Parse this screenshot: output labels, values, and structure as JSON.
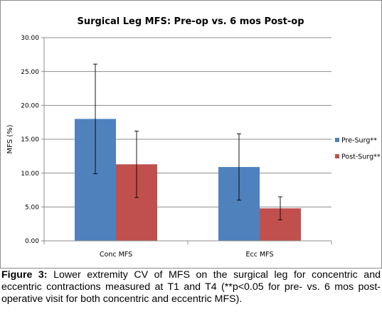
{
  "chart_data": {
    "type": "bar",
    "title": "Surgical Leg MFS: Pre-op vs. 6 mos Post-op",
    "ylabel": "MFS (%)",
    "xlabel": "",
    "ylim": [
      0,
      30
    ],
    "yticks": [
      "0.00",
      "5.00",
      "10.00",
      "15.00",
      "20.00",
      "25.00",
      "30.00"
    ],
    "categories": [
      "Conc MFS",
      "Ecc MFS"
    ],
    "series": [
      {
        "name": "Pre-Surg**",
        "color": "#4f81bd",
        "values": [
          18.0,
          10.9
        ],
        "error": [
          8.1,
          4.9
        ]
      },
      {
        "name": "Post-Surg**",
        "color": "#c0504d",
        "values": [
          11.3,
          4.8
        ],
        "error": [
          4.9,
          1.7
        ]
      }
    ],
    "grid": "horizontal",
    "legend_position": "right"
  },
  "caption": {
    "label": "Figure 3:",
    "text": " Lower extremity CV of MFS on the surgical leg for concentric and eccentric contractions measured at T1 and T4 (**p<0.05 for pre- vs. 6 mos post-operative visit for both concentric and eccentric MFS)."
  }
}
